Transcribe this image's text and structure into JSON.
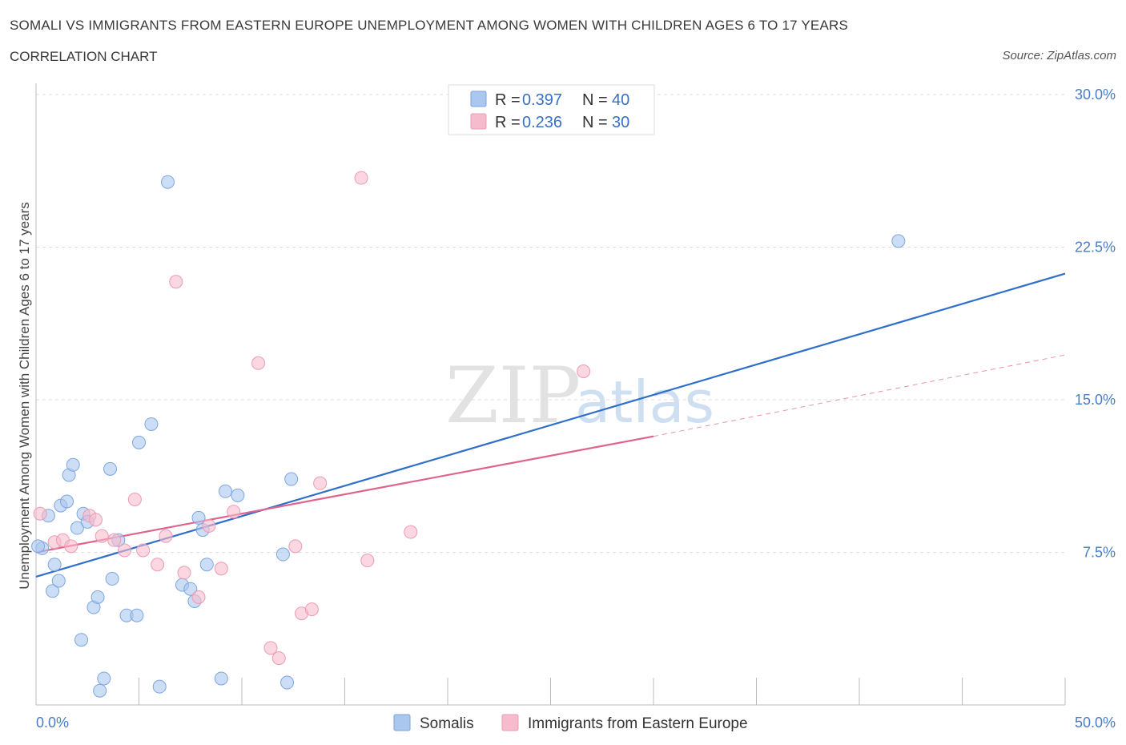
{
  "header": {
    "title": "SOMALI VS IMMIGRANTS FROM EASTERN EUROPE UNEMPLOYMENT AMONG WOMEN WITH CHILDREN AGES 6 TO 17 YEARS",
    "subtitle": "CORRELATION CHART",
    "source": "Source: ZipAtlas.com"
  },
  "watermark": {
    "zip": "ZIP",
    "atlas": "atlas"
  },
  "legend": {
    "rows": [
      {
        "r_label": "R = ",
        "r_value": "0.397",
        "n_label": "N = ",
        "n_value": "40",
        "color": "#aac7f0"
      },
      {
        "r_label": "R = ",
        "r_value": "0.236",
        "n_label": "N = ",
        "n_value": "30",
        "color": "#f6bccd"
      }
    ]
  },
  "chart_data": {
    "type": "scatter",
    "title": "SOMALI VS IMMIGRANTS FROM EASTERN EUROPE UNEMPLOYMENT AMONG WOMEN WITH CHILDREN AGES 6 TO 17 YEARS",
    "ylabel": "Unemployment Among Women with Children Ages 6 to 17 years",
    "xlabel": "",
    "xlim": [
      0,
      50
    ],
    "ylim": [
      0,
      30
    ],
    "x_tick_labels": [
      "0.0%",
      "50.0%"
    ],
    "y_ticks": [
      7.5,
      15.0,
      22.5,
      30.0
    ],
    "y_tick_labels": [
      "7.5%",
      "15.0%",
      "22.5%",
      "30.0%"
    ],
    "grid": true,
    "legend_position": "top-center",
    "series": [
      {
        "name": "Somalis",
        "color": "#aac7f0",
        "stroke": "#7ea6de",
        "trend_color": "#2f6fc9",
        "trend": [
          [
            0,
            6.3
          ],
          [
            50,
            21.2
          ]
        ],
        "points": [
          [
            0.3,
            7.7
          ],
          [
            0.6,
            9.3
          ],
          [
            0.9,
            6.9
          ],
          [
            0.8,
            5.6
          ],
          [
            1.1,
            6.1
          ],
          [
            1.2,
            9.8
          ],
          [
            1.5,
            10.0
          ],
          [
            1.6,
            11.3
          ],
          [
            1.8,
            11.8
          ],
          [
            2.0,
            8.7
          ],
          [
            2.2,
            3.2
          ],
          [
            2.3,
            9.4
          ],
          [
            2.5,
            9.0
          ],
          [
            2.8,
            4.8
          ],
          [
            3.0,
            5.3
          ],
          [
            3.3,
            1.3
          ],
          [
            3.1,
            0.7
          ],
          [
            3.6,
            11.6
          ],
          [
            3.7,
            6.2
          ],
          [
            4.0,
            8.1
          ],
          [
            4.4,
            4.4
          ],
          [
            4.9,
            4.4
          ],
          [
            5.0,
            12.9
          ],
          [
            5.6,
            13.8
          ],
          [
            6.0,
            0.9
          ],
          [
            6.4,
            25.7
          ],
          [
            7.1,
            5.9
          ],
          [
            7.5,
            5.7
          ],
          [
            7.7,
            5.1
          ],
          [
            7.9,
            9.2
          ],
          [
            8.1,
            8.6
          ],
          [
            8.3,
            6.9
          ],
          [
            9.0,
            1.3
          ],
          [
            9.2,
            10.5
          ],
          [
            9.8,
            10.3
          ],
          [
            12.0,
            7.4
          ],
          [
            12.2,
            1.1
          ],
          [
            12.4,
            11.1
          ],
          [
            41.9,
            22.8
          ],
          [
            0.1,
            7.8
          ]
        ]
      },
      {
        "name": "Immigrants from Eastern Europe",
        "color": "#f6bccd",
        "stroke": "#ec9bb4",
        "trend_color": "#e0628d",
        "trend": [
          [
            0,
            7.5
          ],
          [
            30,
            13.2
          ]
        ],
        "trend_dashed": [
          [
            30,
            13.2
          ],
          [
            50,
            17.2
          ]
        ],
        "points": [
          [
            0.2,
            9.4
          ],
          [
            0.9,
            8.0
          ],
          [
            1.3,
            8.1
          ],
          [
            1.7,
            7.8
          ],
          [
            2.6,
            9.3
          ],
          [
            2.9,
            9.1
          ],
          [
            3.2,
            8.3
          ],
          [
            3.8,
            8.1
          ],
          [
            4.3,
            7.6
          ],
          [
            4.8,
            10.1
          ],
          [
            5.2,
            7.6
          ],
          [
            5.9,
            6.9
          ],
          [
            6.3,
            8.3
          ],
          [
            6.8,
            20.8
          ],
          [
            7.2,
            6.5
          ],
          [
            7.9,
            5.3
          ],
          [
            8.4,
            8.8
          ],
          [
            9.0,
            6.7
          ],
          [
            9.6,
            9.5
          ],
          [
            10.8,
            16.8
          ],
          [
            11.4,
            2.8
          ],
          [
            11.8,
            2.3
          ],
          [
            12.6,
            7.8
          ],
          [
            12.9,
            4.5
          ],
          [
            13.4,
            4.7
          ],
          [
            13.8,
            10.9
          ],
          [
            15.8,
            25.9
          ],
          [
            16.1,
            7.1
          ],
          [
            18.2,
            8.5
          ],
          [
            26.6,
            16.4
          ]
        ]
      }
    ]
  }
}
